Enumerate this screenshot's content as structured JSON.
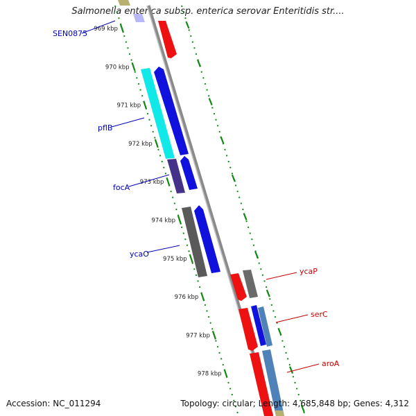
{
  "title": "Salmonella enterica subsp. enterica serovar Enteritidis str....",
  "footer": {
    "accession": "Accession: NC_011294",
    "topology": "Topology: circular; Length: 4,685,848 bp; Genes: 4,312"
  },
  "colors": {
    "backbone": "#8a8a8a",
    "tick_green": "#118811",
    "forward_label": "#0000bb",
    "reverse_label": "#cc0000"
  },
  "axis": {
    "unit": "kbp",
    "ticks": [
      "969 kbp",
      "970 kbp",
      "971 kbp",
      "972 kbp",
      "973 kbp",
      "974 kbp",
      "975 kbp",
      "976 kbp",
      "977 kbp",
      "978 kbp"
    ]
  },
  "genes_left": [
    {
      "label": "SEN0875",
      "color": "#0000bb"
    },
    {
      "label": "pflB",
      "color": "#0000bb"
    },
    {
      "label": "focA",
      "color": "#0000bb"
    },
    {
      "label": "ycaO",
      "color": "#0000bb"
    }
  ],
  "genes_right": [
    {
      "label": "ycaP",
      "color": "#cc0000"
    },
    {
      "label": "serC",
      "color": "#cc0000"
    },
    {
      "label": "aroA",
      "color": "#cc0000"
    }
  ]
}
